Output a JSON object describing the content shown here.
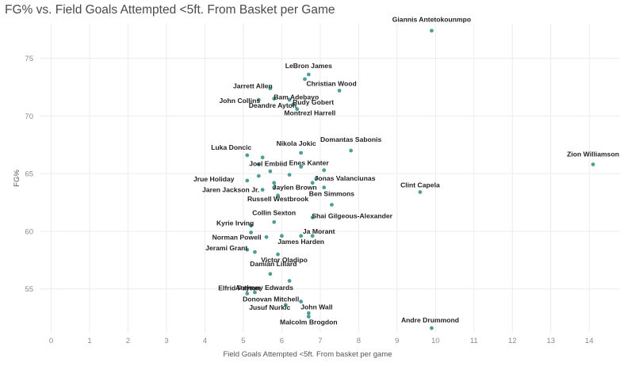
{
  "chart_data": {
    "type": "scatter",
    "title": "FG% vs. Field Goals Attempted <5ft. From Basket per Game",
    "xlabel": "Field Goals Attempted <5ft. From basket per game",
    "ylabel": "FG%",
    "xlim": [
      -0.3,
      14.8
    ],
    "ylim": [
      51.2,
      78.0
    ],
    "xticks": [
      "0",
      "1",
      "2",
      "3",
      "4",
      "5",
      "6",
      "7",
      "8",
      "9",
      "10",
      "11",
      "12",
      "13",
      "14"
    ],
    "yticks": [
      "55",
      "60",
      "65",
      "70",
      "75"
    ],
    "grid": true,
    "point_color": "#4e9f98",
    "points": [
      {
        "name": "Giannis Antetokounmpo",
        "x": 9.9,
        "y": 77.4
      },
      {
        "name": "LeBron James",
        "x": 6.7,
        "y": 73.6
      },
      {
        "name": "",
        "x": 6.6,
        "y": 73.2
      },
      {
        "name": "Christian Wood",
        "x": 7.5,
        "y": 72.2
      },
      {
        "name": "Jarrett Allen",
        "x": 5.7,
        "y": 72.4
      },
      {
        "name": "John Collins",
        "x": 5.4,
        "y": 71.4
      },
      {
        "name": "Bam Adebayo",
        "x": 5.8,
        "y": 71.5
      },
      {
        "name": "Rudy Gobert",
        "x": 6.2,
        "y": 71.4
      },
      {
        "name": "Deandre Ayton",
        "x": 6.3,
        "y": 71.0
      },
      {
        "name": "Montrezl Harrell",
        "x": 6.4,
        "y": 70.6
      },
      {
        "name": "Zion Williamson",
        "x": 14.1,
        "y": 65.8
      },
      {
        "name": "Domantas Sabonis",
        "x": 7.8,
        "y": 67.0
      },
      {
        "name": "Nikola Jokic",
        "x": 6.5,
        "y": 66.8
      },
      {
        "name": "Luka Doncic",
        "x": 5.1,
        "y": 66.6
      },
      {
        "name": "",
        "x": 5.5,
        "y": 66.4
      },
      {
        "name": "Joel Embiid",
        "x": 5.4,
        "y": 65.8
      },
      {
        "name": "Enes Kanter",
        "x": 6.5,
        "y": 65.6
      },
      {
        "name": "",
        "x": 5.7,
        "y": 65.2
      },
      {
        "name": "",
        "x": 7.1,
        "y": 65.3
      },
      {
        "name": "",
        "x": 6.2,
        "y": 64.9
      },
      {
        "name": "Jrue Holiday",
        "x": 5.1,
        "y": 64.4
      },
      {
        "name": "",
        "x": 5.4,
        "y": 64.8
      },
      {
        "name": "Jonas Valanciunas",
        "x": 6.9,
        "y": 64.6
      },
      {
        "name": "",
        "x": 6.8,
        "y": 64.2
      },
      {
        "name": "",
        "x": 5.8,
        "y": 64.2
      },
      {
        "name": "Jaylen Brown",
        "x": 5.8,
        "y": 63.8
      },
      {
        "name": "",
        "x": 7.1,
        "y": 63.8
      },
      {
        "name": "Jaren Jackson Jr.",
        "x": 5.5,
        "y": 63.6
      },
      {
        "name": "Clint Capela",
        "x": 9.6,
        "y": 63.4
      },
      {
        "name": "Russell Westbrook",
        "x": 5.9,
        "y": 63.1
      },
      {
        "name": "Ben Simmons",
        "x": 7.3,
        "y": 62.3
      },
      {
        "name": "Collin Sexton",
        "x": 5.8,
        "y": 60.8
      },
      {
        "name": "Shai Gilgeous-Alexander",
        "x": 6.8,
        "y": 61.2
      },
      {
        "name": "Kyrie Irving",
        "x": 5.2,
        "y": 60.5
      },
      {
        "name": "Ja Morant",
        "x": 6.8,
        "y": 59.6
      },
      {
        "name": "Norman Powell",
        "x": 5.2,
        "y": 59.9
      },
      {
        "name": "",
        "x": 5.6,
        "y": 59.5
      },
      {
        "name": "",
        "x": 6.0,
        "y": 59.6
      },
      {
        "name": "James Harden",
        "x": 6.5,
        "y": 59.6
      },
      {
        "name": "Jerami Grant",
        "x": 5.1,
        "y": 58.4
      },
      {
        "name": "",
        "x": 5.3,
        "y": 58.2
      },
      {
        "name": "Victor Oladipo",
        "x": 5.9,
        "y": 58.0
      },
      {
        "name": "Damian Lillard",
        "x": 5.7,
        "y": 56.3
      },
      {
        "name": "",
        "x": 6.2,
        "y": 55.7
      },
      {
        "name": "Elfrid Payton",
        "x": 5.1,
        "y": 54.6
      },
      {
        "name": "Anthony Edwards",
        "x": 5.3,
        "y": 54.7
      },
      {
        "name": "Donovan Mitchell",
        "x": 6.5,
        "y": 53.9
      },
      {
        "name": "Jusuf Nurkic",
        "x": 6.1,
        "y": 53.6
      },
      {
        "name": "John Wall",
        "x": 6.7,
        "y": 52.9
      },
      {
        "name": "Malcolm Brogdon",
        "x": 6.7,
        "y": 52.6
      },
      {
        "name": "Andre Drummond",
        "x": 9.9,
        "y": 51.6
      }
    ]
  }
}
